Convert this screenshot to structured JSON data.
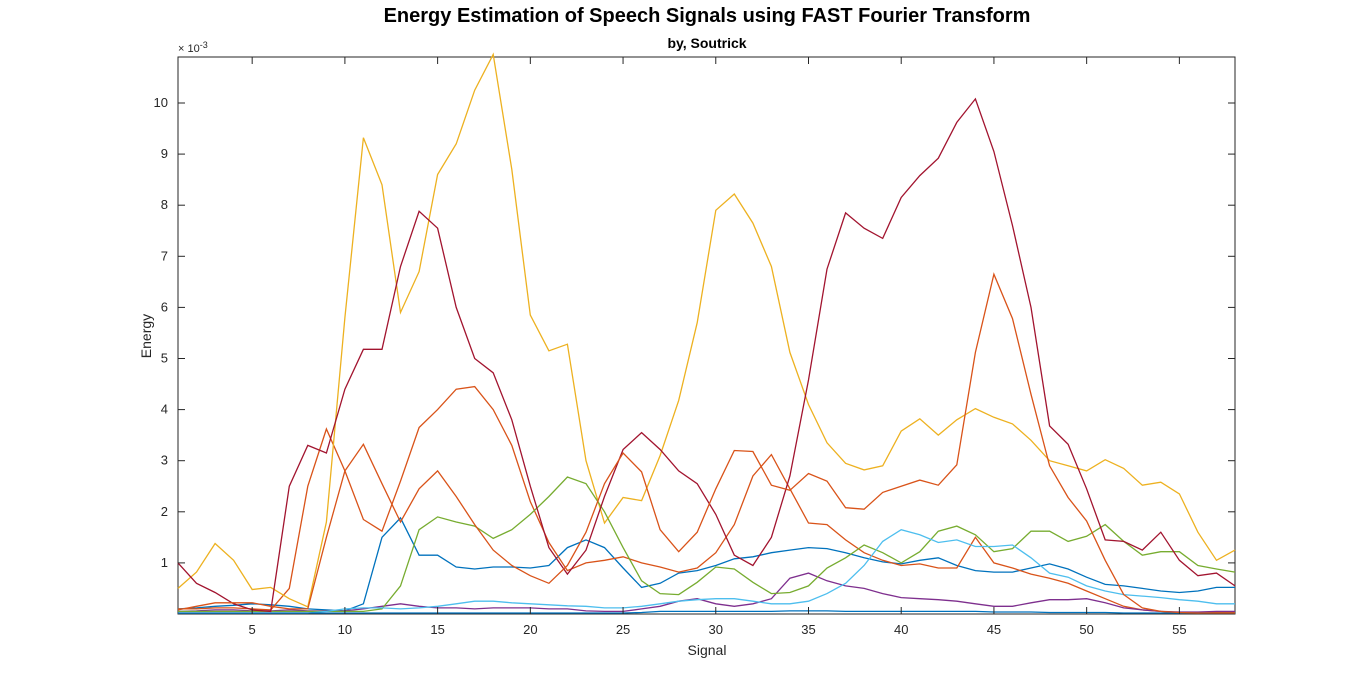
{
  "chart_data": {
    "type": "line",
    "title": "Energy Estimation of Speech Signals using FAST Fourier Transform",
    "subtitle": "by, Soutrick",
    "xlabel": "Signal",
    "ylabel": "Energy",
    "y_exponent_label": "× 10",
    "y_exponent_power": "-3",
    "y_scale_factor": 0.001,
    "xlim": [
      1,
      58
    ],
    "ylim": [
      0,
      10.9
    ],
    "x_ticks": [
      5,
      10,
      15,
      20,
      25,
      30,
      35,
      40,
      45,
      50,
      55
    ],
    "y_ticks": [
      1,
      2,
      3,
      4,
      5,
      6,
      7,
      8,
      9,
      10
    ],
    "grid": false,
    "legend": "none",
    "x": [
      1,
      2,
      3,
      4,
      5,
      6,
      7,
      8,
      9,
      10,
      11,
      12,
      13,
      14,
      15,
      16,
      17,
      18,
      19,
      20,
      21,
      22,
      23,
      24,
      25,
      26,
      27,
      28,
      29,
      30,
      31,
      32,
      33,
      34,
      35,
      36,
      37,
      38,
      39,
      40,
      41,
      42,
      43,
      44,
      45,
      46,
      47,
      48,
      49,
      50,
      51,
      52,
      53,
      54,
      55,
      56,
      57,
      58
    ],
    "series": [
      {
        "color": "#0072BD",
        "values": [
          0.1,
          0.12,
          0.15,
          0.17,
          0.2,
          0.18,
          0.15,
          0.1,
          0.08,
          0.06,
          0.2,
          1.5,
          1.88,
          1.15,
          1.15,
          0.92,
          0.88,
          0.92,
          0.92,
          0.9,
          0.95,
          1.3,
          1.45,
          1.3,
          0.9,
          0.52,
          0.6,
          0.8,
          0.85,
          0.95,
          1.08,
          1.12,
          1.2,
          1.25,
          1.3,
          1.28,
          1.2,
          1.1,
          1.02,
          0.98,
          1.05,
          1.1,
          0.95,
          0.85,
          0.82,
          0.82,
          0.9,
          0.98,
          0.88,
          0.72,
          0.58,
          0.55,
          0.5,
          0.45,
          0.42,
          0.45,
          0.52,
          0.52
        ]
      },
      {
        "color": "#D95319",
        "values": [
          0.1,
          0.1,
          0.12,
          0.12,
          0.1,
          0.08,
          0.5,
          2.5,
          3.62,
          2.8,
          1.85,
          1.62,
          2.6,
          3.65,
          4.0,
          4.4,
          4.45,
          4.0,
          3.3,
          2.2,
          1.4,
          0.85,
          1.0,
          1.05,
          1.12,
          1.0,
          0.92,
          0.82,
          0.9,
          1.2,
          1.75,
          2.7,
          3.12,
          2.45,
          1.78,
          1.75,
          1.45,
          1.2,
          1.05,
          0.95,
          0.98,
          0.9,
          0.9,
          1.5,
          1.0,
          0.9,
          0.78,
          0.7,
          0.6,
          0.45,
          0.3,
          0.15,
          0.08,
          0.05,
          0.02,
          0.02,
          0.03,
          0.03
        ]
      },
      {
        "color": "#EDB120",
        "values": [
          0.5,
          0.82,
          1.38,
          1.05,
          0.48,
          0.52,
          0.3,
          0.14,
          1.8,
          5.8,
          9.32,
          8.4,
          5.9,
          6.7,
          8.6,
          9.2,
          10.25,
          10.95,
          8.7,
          5.85,
          5.15,
          5.28,
          3.0,
          1.78,
          2.28,
          2.22,
          3.1,
          4.18,
          5.7,
          7.9,
          8.22,
          7.65,
          6.8,
          5.12,
          4.1,
          3.35,
          2.95,
          2.82,
          2.9,
          3.58,
          3.82,
          3.5,
          3.8,
          4.02,
          3.85,
          3.72,
          3.4,
          3.0,
          2.9,
          2.8,
          3.02,
          2.85,
          2.52,
          2.58,
          2.35,
          1.6,
          1.05,
          1.25
        ]
      },
      {
        "color": "#7E2F8E",
        "values": [
          0.05,
          0.06,
          0.08,
          0.08,
          0.06,
          0.06,
          0.08,
          0.06,
          0.06,
          0.06,
          0.1,
          0.15,
          0.2,
          0.15,
          0.12,
          0.12,
          0.1,
          0.12,
          0.12,
          0.12,
          0.1,
          0.1,
          0.06,
          0.05,
          0.05,
          0.1,
          0.15,
          0.25,
          0.3,
          0.2,
          0.15,
          0.2,
          0.3,
          0.7,
          0.8,
          0.65,
          0.55,
          0.5,
          0.4,
          0.32,
          0.3,
          0.28,
          0.25,
          0.2,
          0.15,
          0.15,
          0.22,
          0.28,
          0.28,
          0.3,
          0.22,
          0.12,
          0.08,
          0.05,
          0.04,
          0.04,
          0.05,
          0.05
        ]
      },
      {
        "color": "#77AC30",
        "values": [
          0.05,
          0.05,
          0.05,
          0.05,
          0.05,
          0.05,
          0.05,
          0.05,
          0.05,
          0.05,
          0.05,
          0.1,
          0.55,
          1.65,
          1.9,
          1.8,
          1.72,
          1.48,
          1.65,
          1.95,
          2.3,
          2.68,
          2.55,
          2.0,
          1.3,
          0.65,
          0.4,
          0.38,
          0.62,
          0.92,
          0.88,
          0.62,
          0.4,
          0.42,
          0.55,
          0.9,
          1.1,
          1.35,
          1.2,
          1.0,
          1.22,
          1.62,
          1.72,
          1.55,
          1.22,
          1.28,
          1.62,
          1.62,
          1.42,
          1.52,
          1.75,
          1.42,
          1.15,
          1.22,
          1.22,
          0.95,
          0.88,
          0.82
        ]
      },
      {
        "color": "#4DBEEE",
        "values": [
          0.02,
          0.02,
          0.02,
          0.02,
          0.02,
          0.02,
          0.02,
          0.02,
          0.05,
          0.1,
          0.12,
          0.12,
          0.1,
          0.12,
          0.15,
          0.2,
          0.25,
          0.25,
          0.22,
          0.2,
          0.18,
          0.16,
          0.15,
          0.12,
          0.12,
          0.15,
          0.2,
          0.25,
          0.28,
          0.3,
          0.3,
          0.25,
          0.2,
          0.2,
          0.25,
          0.4,
          0.6,
          0.95,
          1.42,
          1.65,
          1.55,
          1.4,
          1.45,
          1.32,
          1.32,
          1.35,
          1.1,
          0.8,
          0.72,
          0.55,
          0.45,
          0.38,
          0.35,
          0.32,
          0.28,
          0.25,
          0.2,
          0.2
        ]
      },
      {
        "color": "#A2142F",
        "values": [
          1.0,
          0.6,
          0.42,
          0.2,
          0.08,
          0.05,
          2.5,
          3.3,
          3.15,
          4.4,
          5.18,
          5.18,
          6.8,
          7.88,
          7.55,
          6.0,
          5.0,
          4.72,
          3.8,
          2.5,
          1.3,
          0.78,
          1.25,
          2.3,
          3.22,
          3.55,
          3.22,
          2.8,
          2.55,
          1.95,
          1.15,
          0.95,
          1.5,
          2.7,
          4.58,
          6.75,
          7.85,
          7.55,
          7.35,
          8.15,
          8.58,
          8.92,
          9.62,
          10.08,
          9.05,
          7.6,
          6.0,
          3.68,
          3.32,
          2.45,
          1.45,
          1.42,
          1.25,
          1.6,
          1.05,
          0.75,
          0.8,
          0.55
        ]
      },
      {
        "color": "#0072BD",
        "values": [
          0.02,
          0.02,
          0.02,
          0.02,
          0.02,
          0.02,
          0.02,
          0.02,
          0.02,
          0.02,
          0.02,
          0.02,
          0.02,
          0.02,
          0.02,
          0.02,
          0.02,
          0.02,
          0.02,
          0.02,
          0.02,
          0.02,
          0.02,
          0.02,
          0.02,
          0.03,
          0.05,
          0.05,
          0.05,
          0.05,
          0.05,
          0.05,
          0.05,
          0.06,
          0.06,
          0.06,
          0.05,
          0.05,
          0.05,
          0.05,
          0.05,
          0.05,
          0.05,
          0.05,
          0.04,
          0.04,
          0.04,
          0.03,
          0.03,
          0.03,
          0.03,
          0.02,
          0.02,
          0.02,
          0.02,
          0.02,
          0.02,
          0.02
        ]
      },
      {
        "color": "#D95319",
        "values": [
          0.08,
          0.15,
          0.22,
          0.22,
          0.22,
          0.15,
          0.1,
          0.1,
          1.5,
          2.8,
          3.32,
          2.55,
          1.8,
          2.45,
          2.8,
          2.3,
          1.75,
          1.25,
          0.95,
          0.75,
          0.6,
          0.95,
          1.6,
          2.55,
          3.15,
          2.78,
          1.65,
          1.22,
          1.6,
          2.45,
          3.2,
          3.18,
          2.52,
          2.42,
          2.75,
          2.6,
          2.08,
          2.05,
          2.38,
          2.5,
          2.62,
          2.52,
          2.92,
          5.12,
          6.65,
          5.78,
          4.3,
          2.9,
          2.28,
          1.82,
          1.05,
          0.38,
          0.12,
          0.05,
          0.03,
          0.02,
          0.02,
          0.02
        ]
      }
    ]
  }
}
